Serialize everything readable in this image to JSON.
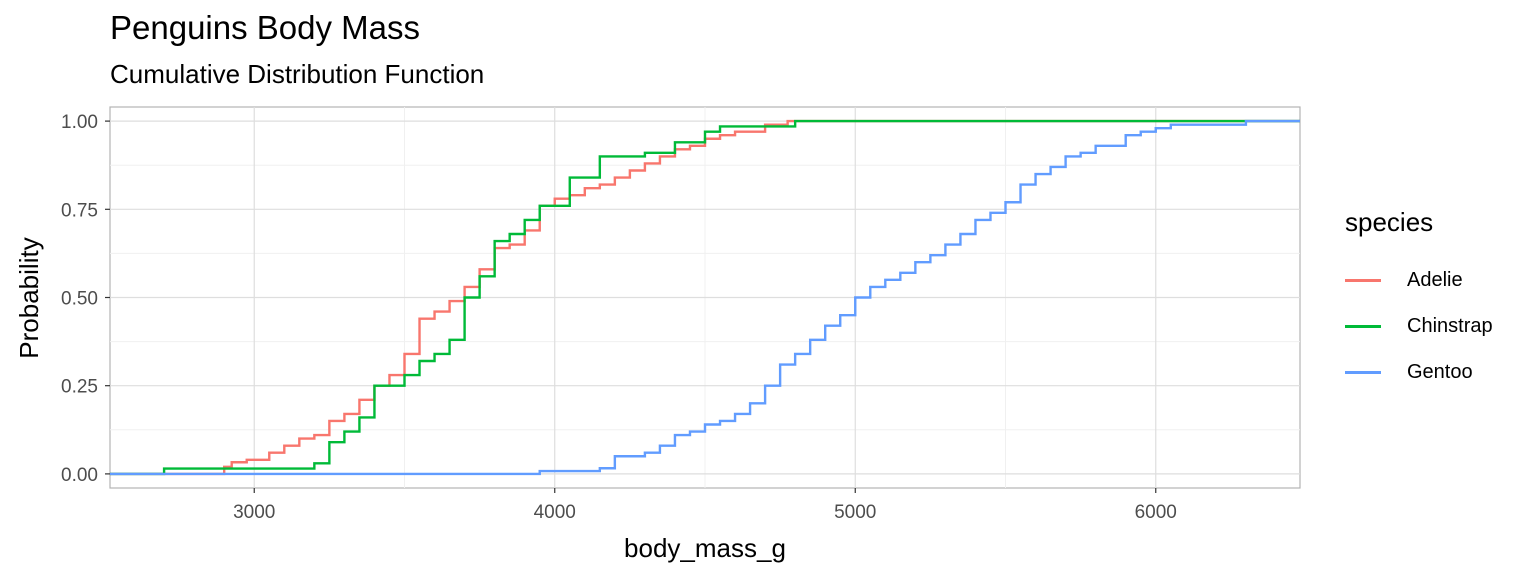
{
  "chart_data": {
    "type": "line",
    "subtype": "step-ecdf",
    "title": "Penguins Body Mass",
    "subtitle": "Cumulative Distribution Function",
    "xlabel": "body_mass_g",
    "ylabel": "Probability",
    "xlim": [
      2520,
      6480
    ],
    "ylim": [
      -0.04,
      1.04
    ],
    "x_ticks": [
      3000,
      4000,
      5000,
      6000
    ],
    "y_ticks": [
      0.0,
      0.25,
      0.5,
      0.75,
      1.0
    ],
    "y_tick_labels": [
      "0.00",
      "0.25",
      "0.50",
      "0.75",
      "1.00"
    ],
    "grid": true,
    "legend": {
      "title": "species",
      "position": "right"
    },
    "series": [
      {
        "name": "Adelie",
        "color": "#F8766D",
        "points": [
          [
            2520,
            0.0
          ],
          [
            2850,
            0.0
          ],
          [
            2900,
            0.02
          ],
          [
            2925,
            0.033
          ],
          [
            2975,
            0.04
          ],
          [
            3050,
            0.06
          ],
          [
            3100,
            0.08
          ],
          [
            3150,
            0.1
          ],
          [
            3200,
            0.11
          ],
          [
            3250,
            0.15
          ],
          [
            3300,
            0.17
          ],
          [
            3350,
            0.21
          ],
          [
            3400,
            0.25
          ],
          [
            3450,
            0.28
          ],
          [
            3500,
            0.34
          ],
          [
            3550,
            0.44
          ],
          [
            3600,
            0.46
          ],
          [
            3650,
            0.49
          ],
          [
            3700,
            0.53
          ],
          [
            3750,
            0.58
          ],
          [
            3800,
            0.64
          ],
          [
            3850,
            0.65
          ],
          [
            3900,
            0.69
          ],
          [
            3950,
            0.76
          ],
          [
            4000,
            0.78
          ],
          [
            4050,
            0.79
          ],
          [
            4100,
            0.81
          ],
          [
            4150,
            0.82
          ],
          [
            4200,
            0.84
          ],
          [
            4250,
            0.86
          ],
          [
            4300,
            0.88
          ],
          [
            4350,
            0.9
          ],
          [
            4400,
            0.92
          ],
          [
            4450,
            0.93
          ],
          [
            4500,
            0.95
          ],
          [
            4550,
            0.96
          ],
          [
            4600,
            0.97
          ],
          [
            4700,
            0.99
          ],
          [
            4775,
            1.0
          ],
          [
            6480,
            1.0
          ]
        ]
      },
      {
        "name": "Chinstrap",
        "color": "#00BA38",
        "points": [
          [
            2520,
            0.0
          ],
          [
            2700,
            0.015
          ],
          [
            3200,
            0.03
          ],
          [
            3250,
            0.09
          ],
          [
            3300,
            0.12
          ],
          [
            3350,
            0.16
          ],
          [
            3400,
            0.25
          ],
          [
            3450,
            0.25
          ],
          [
            3500,
            0.28
          ],
          [
            3550,
            0.32
          ],
          [
            3600,
            0.34
          ],
          [
            3650,
            0.38
          ],
          [
            3700,
            0.5
          ],
          [
            3750,
            0.56
          ],
          [
            3800,
            0.66
          ],
          [
            3850,
            0.68
          ],
          [
            3900,
            0.72
          ],
          [
            3950,
            0.76
          ],
          [
            4050,
            0.84
          ],
          [
            4150,
            0.9
          ],
          [
            4300,
            0.91
          ],
          [
            4400,
            0.94
          ],
          [
            4500,
            0.97
          ],
          [
            4550,
            0.985
          ],
          [
            4800,
            1.0
          ],
          [
            6480,
            1.0
          ]
        ]
      },
      {
        "name": "Gentoo",
        "color": "#619CFF",
        "points": [
          [
            2520,
            0.0
          ],
          [
            3950,
            0.008
          ],
          [
            4150,
            0.016
          ],
          [
            4200,
            0.05
          ],
          [
            4300,
            0.06
          ],
          [
            4350,
            0.08
          ],
          [
            4400,
            0.11
          ],
          [
            4450,
            0.12
          ],
          [
            4500,
            0.14
          ],
          [
            4550,
            0.15
          ],
          [
            4600,
            0.17
          ],
          [
            4650,
            0.2
          ],
          [
            4700,
            0.25
          ],
          [
            4750,
            0.31
          ],
          [
            4800,
            0.34
          ],
          [
            4850,
            0.38
          ],
          [
            4900,
            0.42
          ],
          [
            4950,
            0.45
          ],
          [
            5000,
            0.5
          ],
          [
            5050,
            0.53
          ],
          [
            5100,
            0.55
          ],
          [
            5150,
            0.57
          ],
          [
            5200,
            0.6
          ],
          [
            5250,
            0.62
          ],
          [
            5300,
            0.65
          ],
          [
            5350,
            0.68
          ],
          [
            5400,
            0.72
          ],
          [
            5450,
            0.74
          ],
          [
            5500,
            0.77
          ],
          [
            5550,
            0.82
          ],
          [
            5600,
            0.85
          ],
          [
            5650,
            0.87
          ],
          [
            5700,
            0.9
          ],
          [
            5750,
            0.91
          ],
          [
            5800,
            0.93
          ],
          [
            5900,
            0.96
          ],
          [
            5950,
            0.97
          ],
          [
            6000,
            0.98
          ],
          [
            6050,
            0.99
          ],
          [
            6300,
            1.0
          ],
          [
            6480,
            1.0
          ]
        ]
      }
    ]
  }
}
